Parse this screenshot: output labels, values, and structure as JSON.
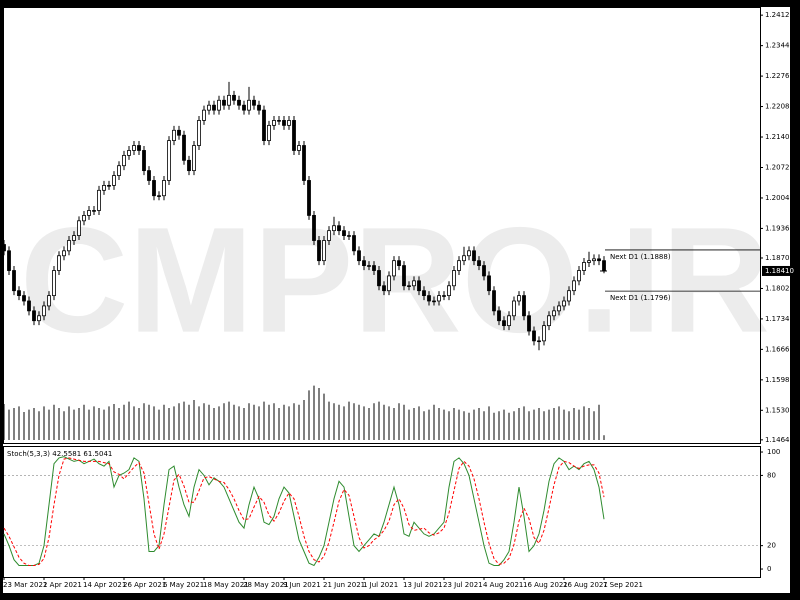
{
  "chart_data": [
    {
      "type": "candlestick",
      "watermark": "CMPRO.IR",
      "categories": [
        "23 Mar 2021",
        null,
        null,
        null,
        null,
        null,
        null,
        null,
        "2 Apr 2021",
        null,
        null,
        null,
        null,
        null,
        null,
        null,
        "14 Apr 2021",
        null,
        null,
        null,
        null,
        null,
        null,
        null,
        "26 Apr 2021",
        null,
        null,
        null,
        null,
        null,
        null,
        null,
        "6 May 2021",
        null,
        null,
        null,
        null,
        null,
        null,
        null,
        "18 May 2021",
        null,
        null,
        null,
        null,
        null,
        null,
        null,
        "28 May 2021",
        null,
        null,
        null,
        null,
        null,
        null,
        null,
        "9 Jun 2021",
        null,
        null,
        null,
        null,
        null,
        null,
        null,
        "21 Jun 2021",
        null,
        null,
        null,
        null,
        null,
        null,
        null,
        "1 Jul 2021",
        null,
        null,
        null,
        null,
        null,
        null,
        null,
        "13 Jul 2021",
        null,
        null,
        null,
        null,
        null,
        null,
        null,
        "23 Jul 2021",
        null,
        null,
        null,
        null,
        null,
        null,
        null,
        "4 Aug 2021",
        null,
        null,
        null,
        null,
        null,
        null,
        null,
        "16 Aug 2021",
        null,
        null,
        null,
        null,
        null,
        null,
        null,
        "26 Aug 2021",
        null,
        null,
        null,
        null,
        null,
        null,
        null,
        "7 Sep 2021"
      ],
      "open": [
        1.19,
        1.1886,
        1.1842,
        1.1797,
        1.1786,
        1.1774,
        1.1752,
        1.173,
        1.1741,
        1.1763,
        1.1786,
        1.1842,
        1.1875,
        1.1886,
        1.1909,
        1.192,
        1.1953,
        1.1965,
        1.1976,
        1.1976,
        1.2021,
        1.2032,
        1.2032,
        1.2054,
        1.2076,
        1.2099,
        1.211,
        1.2121,
        1.211,
        1.2065,
        1.2043,
        1.2009,
        1.2009,
        1.2043,
        1.2132,
        1.2155,
        1.2144,
        1.2088,
        1.2065,
        1.2121,
        1.2177,
        1.22,
        1.2211,
        1.22,
        1.2222,
        1.2211,
        1.2233,
        1.2222,
        1.2211,
        1.22,
        1.2222,
        1.2211,
        1.22,
        1.2132,
        1.2166,
        1.2177,
        1.2177,
        1.2166,
        1.2177,
        1.211,
        1.2121,
        1.2043,
        1.1965,
        1.1909,
        1.1864,
        1.1909,
        1.1931,
        1.1942,
        1.1931,
        1.192,
        1.192,
        1.1886,
        1.1864,
        1.1853,
        1.1853,
        1.1842,
        1.1808,
        1.1797,
        1.183,
        1.1864,
        1.1853,
        1.1808,
        1.1808,
        1.1819,
        1.1797,
        1.1786,
        1.1774,
        1.1774,
        1.1786,
        1.1786,
        1.1808,
        1.1842,
        1.1864,
        1.1875,
        1.1886,
        1.1864,
        1.1853,
        1.183,
        1.1797,
        1.1752,
        1.173,
        1.1719,
        1.1741,
        1.1774,
        1.1786,
        1.1741,
        1.1707,
        1.1685,
        1.1685,
        1.1719,
        1.1741,
        1.1752,
        1.1763,
        1.1774,
        1.1797,
        1.1819,
        1.1842,
        1.186,
        1.1864,
        1.1868,
        1.1864
      ],
      "high": [
        1.191,
        1.1896,
        1.1852,
        1.1807,
        1.1796,
        1.1784,
        1.1762,
        1.1751,
        1.1773,
        1.1796,
        1.1852,
        1.1885,
        1.1896,
        1.1919,
        1.193,
        1.1963,
        1.1975,
        1.1986,
        1.1986,
        1.2031,
        1.2042,
        1.2042,
        1.2064,
        1.2086,
        1.2109,
        1.212,
        1.2131,
        1.2131,
        1.212,
        1.2075,
        1.2053,
        1.2019,
        1.2053,
        1.2142,
        1.2165,
        1.2165,
        1.2154,
        1.2098,
        1.2131,
        1.2187,
        1.221,
        1.2221,
        1.2221,
        1.2232,
        1.2232,
        1.2263,
        1.2243,
        1.2232,
        1.2221,
        1.2252,
        1.2232,
        1.2221,
        1.221,
        1.2176,
        1.2187,
        1.2187,
        1.2187,
        1.2187,
        1.2187,
        1.2131,
        1.2131,
        1.2053,
        1.1975,
        1.1919,
        1.1919,
        1.1941,
        1.1962,
        1.1952,
        1.1941,
        1.193,
        1.193,
        1.1896,
        1.1874,
        1.1863,
        1.1863,
        1.1852,
        1.1818,
        1.184,
        1.1874,
        1.1874,
        1.1863,
        1.1818,
        1.1829,
        1.1829,
        1.1807,
        1.1796,
        1.1784,
        1.1796,
        1.1796,
        1.1818,
        1.1852,
        1.1874,
        1.1895,
        1.1896,
        1.1896,
        1.1874,
        1.1863,
        1.184,
        1.1807,
        1.1762,
        1.174,
        1.1751,
        1.1784,
        1.1796,
        1.1796,
        1.1751,
        1.1717,
        1.1695,
        1.1729,
        1.1751,
        1.1762,
        1.1773,
        1.1784,
        1.1807,
        1.1829,
        1.1852,
        1.187,
        1.1884,
        1.1878,
        1.1878,
        1.1874
      ],
      "low": [
        1.1876,
        1.1832,
        1.1787,
        1.1776,
        1.1764,
        1.1742,
        1.172,
        1.172,
        1.1731,
        1.1753,
        1.1776,
        1.1832,
        1.1865,
        1.1876,
        1.1899,
        1.191,
        1.1943,
        1.1955,
        1.1966,
        1.1966,
        1.2011,
        1.2022,
        1.2022,
        1.2044,
        1.2066,
        1.2089,
        1.21,
        1.21,
        1.2055,
        1.2033,
        1.1999,
        1.1999,
        1.1999,
        1.2033,
        1.2122,
        1.2134,
        1.2078,
        1.2055,
        1.2055,
        1.2111,
        1.2167,
        1.219,
        1.219,
        1.219,
        1.2201,
        1.2201,
        1.2212,
        1.2201,
        1.219,
        1.219,
        1.2201,
        1.219,
        1.2122,
        1.2122,
        1.2156,
        1.2167,
        1.2156,
        1.2156,
        1.21,
        1.21,
        1.2033,
        1.1955,
        1.1899,
        1.1854,
        1.1854,
        1.1899,
        1.1921,
        1.1921,
        1.191,
        1.191,
        1.1876,
        1.1854,
        1.1843,
        1.1843,
        1.1832,
        1.1798,
        1.1787,
        1.1787,
        1.182,
        1.1843,
        1.1798,
        1.1798,
        1.1798,
        1.1787,
        1.1776,
        1.1764,
        1.1764,
        1.1764,
        1.1776,
        1.1776,
        1.1798,
        1.1832,
        1.1854,
        1.1865,
        1.1854,
        1.1843,
        1.182,
        1.1787,
        1.1742,
        1.172,
        1.1709,
        1.1709,
        1.1731,
        1.1764,
        1.1731,
        1.1697,
        1.1675,
        1.1664,
        1.1675,
        1.1709,
        1.1731,
        1.1742,
        1.1753,
        1.1764,
        1.1787,
        1.1809,
        1.1832,
        1.185,
        1.1854,
        1.1854,
        1.1836
      ],
      "close": [
        1.1886,
        1.1842,
        1.1797,
        1.1786,
        1.1774,
        1.1752,
        1.173,
        1.1741,
        1.1763,
        1.1786,
        1.1842,
        1.1875,
        1.1886,
        1.1909,
        1.192,
        1.1953,
        1.1965,
        1.1976,
        1.1976,
        1.2021,
        1.2032,
        1.2032,
        1.2054,
        1.2076,
        1.2099,
        1.211,
        1.2121,
        1.211,
        1.2065,
        1.2043,
        1.2009,
        1.2009,
        1.2043,
        1.2132,
        1.2155,
        1.2144,
        1.2088,
        1.2065,
        1.2121,
        1.2177,
        1.22,
        1.2211,
        1.22,
        1.2222,
        1.2211,
        1.2233,
        1.2222,
        1.2211,
        1.22,
        1.2222,
        1.2211,
        1.22,
        1.2132,
        1.2166,
        1.2177,
        1.2177,
        1.2166,
        1.2177,
        1.211,
        1.2121,
        1.2043,
        1.1965,
        1.1909,
        1.1864,
        1.1909,
        1.1931,
        1.1942,
        1.1931,
        1.192,
        1.192,
        1.1886,
        1.1864,
        1.1853,
        1.1853,
        1.1842,
        1.1808,
        1.1797,
        1.183,
        1.1864,
        1.1853,
        1.1808,
        1.1808,
        1.1819,
        1.1797,
        1.1786,
        1.1774,
        1.1774,
        1.1786,
        1.1786,
        1.1808,
        1.1842,
        1.1864,
        1.1875,
        1.1886,
        1.1864,
        1.1853,
        1.183,
        1.1797,
        1.1752,
        1.173,
        1.1719,
        1.1741,
        1.1774,
        1.1786,
        1.1741,
        1.1707,
        1.1685,
        1.1685,
        1.1719,
        1.1741,
        1.1752,
        1.1763,
        1.1774,
        1.1797,
        1.1819,
        1.1842,
        1.186,
        1.1864,
        1.1868,
        1.1864,
        1.1841
      ],
      "color_up": "#ffffff",
      "color_down": "#000000",
      "ylim": [
        1.1457,
        1.2428
      ],
      "yticks": [
        {
          "value": 1.2412,
          "label": "1.24120"
        },
        {
          "value": 1.2344,
          "label": "1.23440"
        },
        {
          "value": 1.2276,
          "label": "1.22760"
        },
        {
          "value": 1.2208,
          "label": "1.22080"
        },
        {
          "value": 1.214,
          "label": "1.21400"
        },
        {
          "value": 1.2072,
          "label": "1.20720"
        },
        {
          "value": 1.2004,
          "label": "1.20040"
        },
        {
          "value": 1.1936,
          "label": "1.19360"
        },
        {
          "value": 1.187,
          "label": "1.18700"
        },
        {
          "value": 1.1802,
          "label": "1.18020"
        },
        {
          "value": 1.1734,
          "label": "1.17340"
        },
        {
          "value": 1.1666,
          "label": "1.16660"
        },
        {
          "value": 1.1598,
          "label": "1.15980"
        },
        {
          "value": 1.153,
          "label": "1.15300"
        },
        {
          "value": 1.1464,
          "label": "1.14640"
        }
      ],
      "last_price": {
        "value": 1.1841,
        "label": "1.18410"
      },
      "levels": [
        {
          "value": 1.1888,
          "label": "Next D1 (1.1888)"
        },
        {
          "value": 1.1796,
          "label": "Next D1 (1.1796)"
        }
      ],
      "volume": {
        "color": "#000000",
        "vlim": [
          0,
          100
        ],
        "values": [
          45,
          38,
          40,
          42,
          35,
          38,
          40,
          36,
          42,
          38,
          44,
          40,
          36,
          42,
          38,
          40,
          44,
          38,
          42,
          40,
          38,
          42,
          45,
          40,
          44,
          48,
          42,
          40,
          46,
          44,
          42,
          38,
          44,
          40,
          42,
          46,
          48,
          44,
          50,
          42,
          46,
          44,
          40,
          42,
          46,
          48,
          44,
          42,
          40,
          46,
          44,
          42,
          48,
          44,
          46,
          40,
          44,
          42,
          46,
          44,
          50,
          62,
          68,
          65,
          58,
          48,
          46,
          44,
          42,
          48,
          46,
          44,
          42,
          40,
          46,
          48,
          44,
          42,
          40,
          46,
          44,
          38,
          40,
          42,
          36,
          38,
          44,
          40,
          38,
          36,
          40,
          38,
          36,
          34,
          38,
          40,
          36,
          42,
          34,
          36,
          38,
          34,
          36,
          40,
          42,
          36,
          38,
          40,
          36,
          38,
          40,
          42,
          38,
          36,
          40,
          38,
          42,
          40,
          36,
          44,
          6
        ]
      }
    },
    {
      "type": "line",
      "title": "Stoch(5,3,3) 42.5581 61.5041",
      "ylim": [
        -6.8,
        104.3
      ],
      "yticks": [
        0,
        20,
        80,
        100
      ],
      "levels": [
        20,
        80
      ],
      "series": [
        {
          "color": "#2e8b2e",
          "dashed": false,
          "values": [
            30,
            20,
            8,
            3,
            3,
            3,
            3,
            5,
            20,
            55,
            90,
            95,
            96,
            94,
            92,
            93,
            90,
            92,
            94,
            90,
            88,
            92,
            70,
            80,
            82,
            85,
            95,
            92,
            60,
            15,
            15,
            20,
            55,
            85,
            88,
            70,
            55,
            45,
            70,
            85,
            80,
            72,
            78,
            75,
            70,
            60,
            50,
            40,
            35,
            55,
            70,
            60,
            40,
            38,
            45,
            60,
            70,
            65,
            45,
            25,
            15,
            5,
            3,
            10,
            20,
            40,
            60,
            75,
            70,
            45,
            20,
            15,
            20,
            25,
            30,
            28,
            40,
            55,
            70,
            55,
            30,
            28,
            40,
            35,
            30,
            28,
            30,
            35,
            40,
            70,
            92,
            95,
            90,
            80,
            60,
            40,
            20,
            5,
            3,
            3,
            8,
            15,
            40,
            70,
            45,
            15,
            20,
            30,
            50,
            75,
            90,
            95,
            92,
            85,
            88,
            85,
            90,
            92,
            85,
            70,
            42.5581
          ]
        },
        {
          "color": "#ff0000",
          "dashed": true,
          "values": [
            35,
            28,
            19,
            10,
            5,
            3,
            3,
            4,
            9,
            27,
            55,
            80,
            94,
            95,
            94,
            93,
            92,
            92,
            92,
            92,
            91,
            90,
            83,
            81,
            77,
            82,
            87,
            91,
            82,
            56,
            30,
            17,
            30,
            53,
            76,
            81,
            71,
            57,
            57,
            67,
            78,
            79,
            77,
            75,
            74,
            68,
            60,
            50,
            42,
            43,
            53,
            62,
            57,
            46,
            41,
            48,
            58,
            65,
            60,
            45,
            28,
            15,
            8,
            6,
            11,
            23,
            40,
            58,
            68,
            63,
            45,
            27,
            18,
            20,
            25,
            28,
            33,
            41,
            55,
            60,
            52,
            38,
            33,
            34,
            35,
            31,
            29,
            31,
            35,
            48,
            67,
            86,
            92,
            88,
            77,
            60,
            40,
            22,
            9,
            4,
            5,
            9,
            21,
            41,
            52,
            43,
            27,
            22,
            33,
            52,
            72,
            87,
            92,
            91,
            88,
            86,
            88,
            89,
            89,
            82,
            61.5041
          ]
        }
      ]
    }
  ]
}
